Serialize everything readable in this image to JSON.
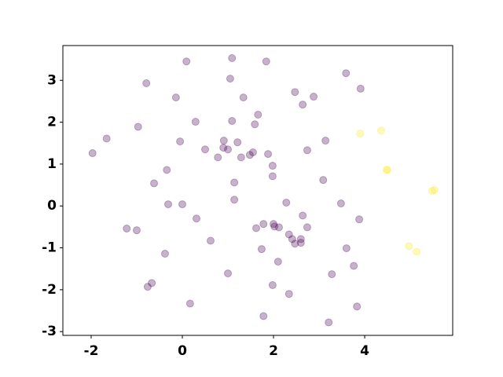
{
  "chart_data": {
    "type": "scatter",
    "xlim": [
      -2.62,
      5.93
    ],
    "ylim": [
      -3.09,
      3.83
    ],
    "xticks": [
      -2,
      0,
      2,
      4
    ],
    "yticks": [
      -3,
      -2,
      -1,
      0,
      1,
      2,
      3
    ],
    "alpha": 0.3,
    "series": [
      {
        "color": "#440154",
        "x": [
          1.09,
          0.09,
          1.84,
          -0.79,
          1.05,
          3.59,
          3.91,
          -0.14,
          1.34,
          2.47,
          2.88,
          2.64,
          1.66,
          -0.97,
          0.29,
          1.09,
          1.59,
          -1.66,
          3.14,
          -1.97,
          -0.05,
          0.5,
          0.91,
          1.0,
          1.21,
          0.9,
          0.78,
          1.55,
          1.29,
          1.48,
          1.88,
          2.74,
          1.98,
          -0.34,
          1.14,
          1.98,
          3.09,
          -0.62,
          -0.31,
          0.0,
          1.14,
          2.28,
          3.48,
          0.31,
          2.64,
          3.88,
          -1.22,
          -1.0,
          1.62,
          1.78,
          2.0,
          2.02,
          2.12,
          2.74,
          2.34,
          2.41,
          2.47,
          2.6,
          2.6,
          -0.38,
          0.62,
          1.74,
          3.6,
          2.1,
          1.0,
          3.28,
          3.76,
          -0.67,
          -0.76,
          1.98,
          2.34,
          0.17,
          1.78,
          3.21,
          3.83
        ],
        "y": [
          3.53,
          3.45,
          3.45,
          2.93,
          3.04,
          3.17,
          2.8,
          2.59,
          2.59,
          2.72,
          2.61,
          2.42,
          2.18,
          1.89,
          2.01,
          2.03,
          1.95,
          1.61,
          1.56,
          1.26,
          1.54,
          1.35,
          1.56,
          1.35,
          1.52,
          1.39,
          1.16,
          1.28,
          1.16,
          1.22,
          1.24,
          1.33,
          0.96,
          0.86,
          0.56,
          0.71,
          0.62,
          0.54,
          0.04,
          0.04,
          0.15,
          0.08,
          0.06,
          -0.3,
          -0.23,
          -0.32,
          -0.54,
          -0.58,
          -0.53,
          -0.43,
          -0.43,
          -0.49,
          -0.51,
          -0.51,
          -0.68,
          -0.79,
          -0.9,
          -0.79,
          -0.88,
          -1.14,
          -0.83,
          -1.03,
          -1.01,
          -1.33,
          -1.61,
          -1.63,
          -1.43,
          -1.84,
          -1.93,
          -1.89,
          -2.1,
          -2.33,
          -2.63,
          -2.78,
          -2.4
        ]
      },
      {
        "color": "#fde725",
        "x": [
          3.9,
          4.36,
          4.48,
          4.5,
          4.97,
          5.14,
          5.48,
          5.53
        ],
        "y": [
          1.73,
          1.8,
          0.86,
          0.86,
          -0.96,
          -1.09,
          0.36,
          0.38
        ]
      }
    ]
  }
}
